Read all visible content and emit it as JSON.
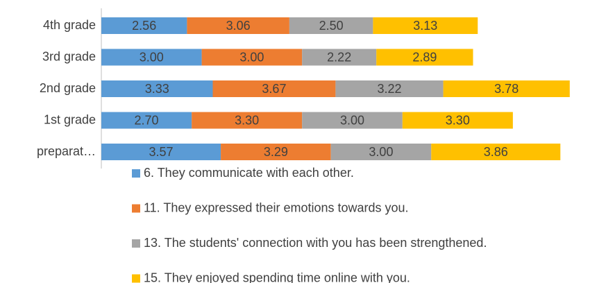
{
  "chart_data": {
    "type": "stacked_bar_horizontal",
    "categories": [
      "4th grade",
      "3rd grade",
      "2nd grade",
      "1st grade",
      "preparat…"
    ],
    "series": [
      {
        "name": "6. They communicate with each other.",
        "color": "#5b9bd5",
        "values": [
          2.56,
          3.0,
          3.33,
          2.7,
          3.57
        ],
        "value_labels": [
          "2.56",
          "3.00",
          "3.33",
          "2.70",
          "3.57"
        ]
      },
      {
        "name": "11. They expressed their emotions towards you.",
        "color": "#ed7d31",
        "values": [
          3.06,
          3.0,
          3.67,
          3.3,
          3.29
        ],
        "value_labels": [
          "3.06",
          "3.00",
          "3.67",
          "3.30",
          "3.29"
        ]
      },
      {
        "name": "13. The students' connection with you has been strengthened.",
        "color": "#a5a5a5",
        "values": [
          2.5,
          2.22,
          3.22,
          3.0,
          3.0
        ],
        "value_labels": [
          "2.50",
          "2.22",
          "3.22",
          "3.00",
          "3.00"
        ]
      },
      {
        "name": "15. They enjoyed spending time online with you.",
        "color": "#ffc000",
        "values": [
          3.13,
          2.89,
          3.78,
          3.3,
          3.86
        ],
        "value_labels": [
          "3.13",
          "2.89",
          "3.78",
          "3.30",
          "3.86"
        ]
      }
    ]
  }
}
